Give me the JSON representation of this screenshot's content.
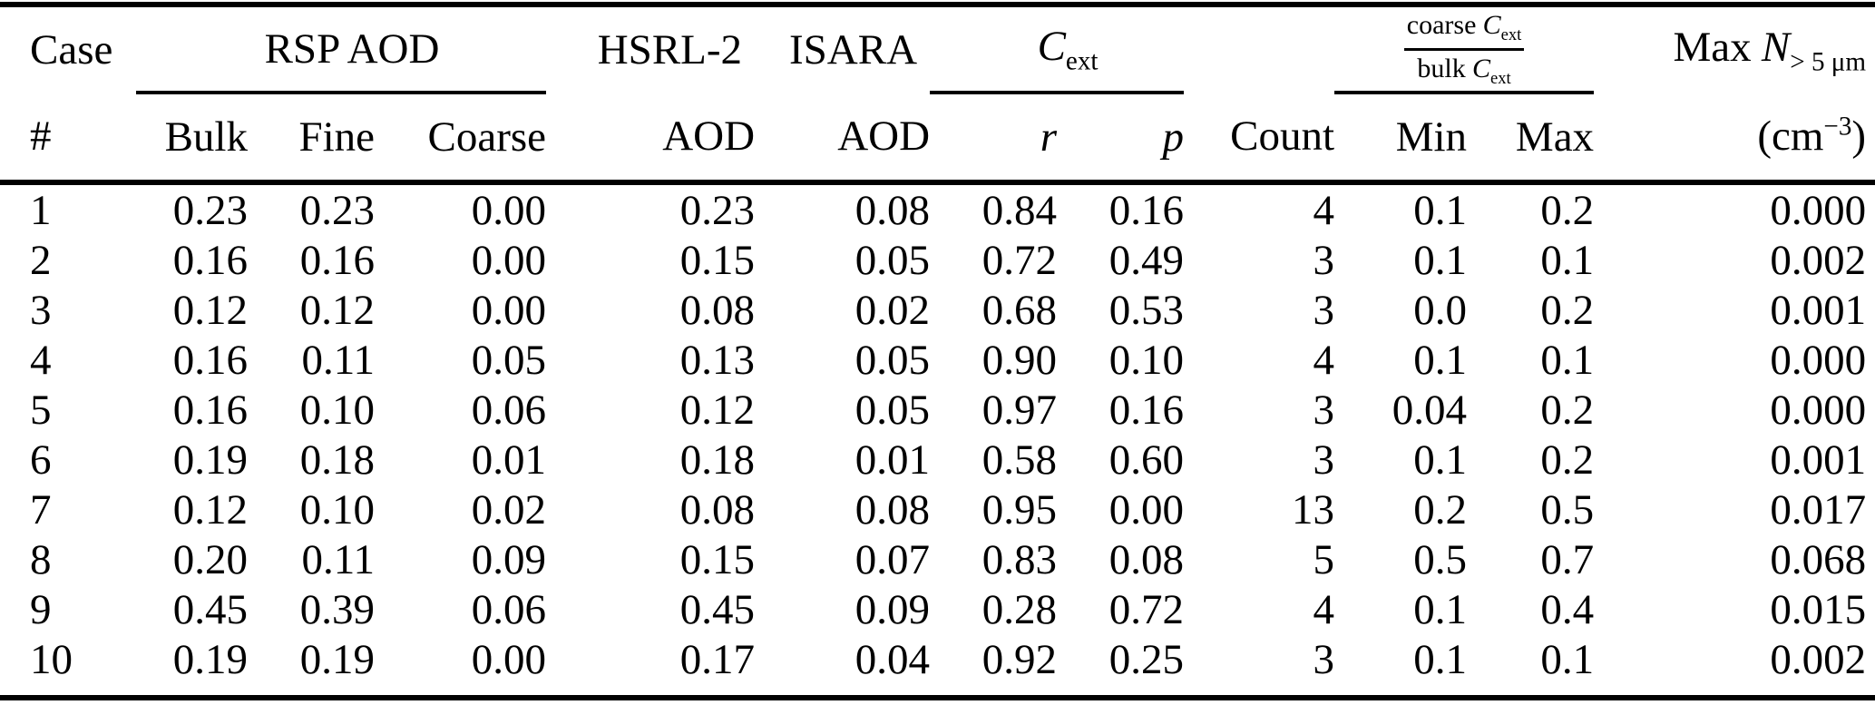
{
  "page": {
    "background_color": "#ffffff",
    "text_color": "#000000"
  },
  "table": {
    "header_group_row": {
      "case": "Case",
      "rsp_aod": "RSP AOD",
      "hsrl2": "HSRL-2",
      "isara": "ISARA",
      "cext_symbol": "C",
      "cext_subscript": "ext",
      "ratio_numerator_word": "coarse",
      "ratio_numerator_symbol": "C",
      "ratio_numerator_subscript": "ext",
      "ratio_denominator_word": "bulk",
      "ratio_denominator_symbol": "C",
      "ratio_denominator_subscript": "ext",
      "max_n_prefix": "Max",
      "max_n_symbol": "N",
      "max_n_subscript": "> 5 μm"
    },
    "header_row": {
      "labels": [
        "#",
        "Bulk",
        "Fine",
        "Coarse",
        "AOD",
        "AOD",
        "r",
        "p",
        "Count",
        "Min",
        "Max"
      ],
      "unit_open": "(cm",
      "unit_superscript": "−3",
      "unit_close": ")"
    },
    "rows": [
      [
        "1",
        "0.23",
        "0.23",
        "0.00",
        "0.23",
        "0.08",
        "0.84",
        "0.16",
        "4",
        "0.1",
        "0.2",
        "0.000"
      ],
      [
        "2",
        "0.16",
        "0.16",
        "0.00",
        "0.15",
        "0.05",
        "0.72",
        "0.49",
        "3",
        "0.1",
        "0.1",
        "0.002"
      ],
      [
        "3",
        "0.12",
        "0.12",
        "0.00",
        "0.08",
        "0.02",
        "0.68",
        "0.53",
        "3",
        "0.0",
        "0.2",
        "0.001"
      ],
      [
        "4",
        "0.16",
        "0.11",
        "0.05",
        "0.13",
        "0.05",
        "0.90",
        "0.10",
        "4",
        "0.1",
        "0.1",
        "0.000"
      ],
      [
        "5",
        "0.16",
        "0.10",
        "0.06",
        "0.12",
        "0.05",
        "0.97",
        "0.16",
        "3",
        "0.04",
        "0.2",
        "0.000"
      ],
      [
        "6",
        "0.19",
        "0.18",
        "0.01",
        "0.18",
        "0.01",
        "0.58",
        "0.60",
        "3",
        "0.1",
        "0.2",
        "0.001"
      ],
      [
        "7",
        "0.12",
        "0.10",
        "0.02",
        "0.08",
        "0.08",
        "0.95",
        "0.00",
        "13",
        "0.2",
        "0.5",
        "0.017"
      ],
      [
        "8",
        "0.20",
        "0.11",
        "0.09",
        "0.15",
        "0.07",
        "0.83",
        "0.08",
        "5",
        "0.5",
        "0.7",
        "0.068"
      ],
      [
        "9",
        "0.45",
        "0.39",
        "0.06",
        "0.45",
        "0.09",
        "0.28",
        "0.72",
        "4",
        "0.1",
        "0.4",
        "0.015"
      ],
      [
        "10",
        "0.19",
        "0.19",
        "0.00",
        "0.17",
        "0.04",
        "0.92",
        "0.25",
        "3",
        "0.1",
        "0.1",
        "0.002"
      ]
    ]
  }
}
